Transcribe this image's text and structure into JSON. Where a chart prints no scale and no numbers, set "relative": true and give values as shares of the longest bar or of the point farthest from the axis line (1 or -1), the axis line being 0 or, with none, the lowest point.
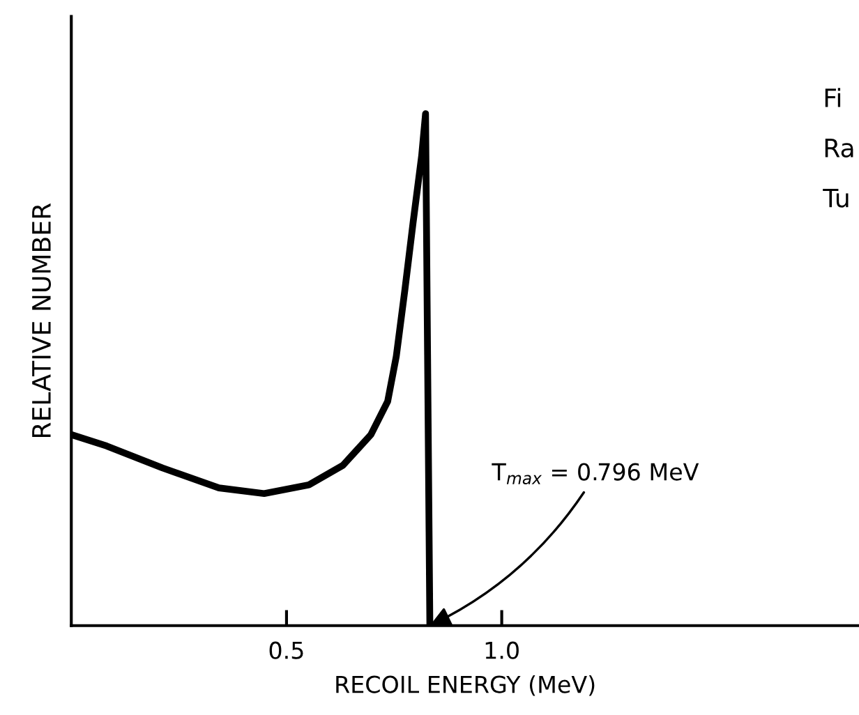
{
  "chart_data": {
    "type": "line",
    "relative": true,
    "xlabel": "RECOIL ENERGY (MeV)",
    "ylabel": "RELATIVE NUMBER",
    "xlim": [
      0,
      1.83
    ],
    "xticks": [
      0.5,
      {
        "value": 1.0,
        "label": "1.0"
      }
    ],
    "series": [
      {
        "color": "#000000",
        "x": [
          0,
          0.082,
          0.212,
          0.343,
          0.448,
          0.552,
          0.631,
          0.696,
          0.735,
          0.755,
          0.775,
          0.794,
          0.814,
          0.823,
          0.833
        ],
        "values": [
          0.373,
          0.351,
          0.308,
          0.269,
          0.258,
          0.275,
          0.313,
          0.373,
          0.438,
          0.526,
          0.656,
          0.787,
          0.918,
          1.0,
          0
        ]
      }
    ],
    "marker": "none",
    "line_style": "solid",
    "grid": false,
    "legend": false,
    "annotations": [
      {
        "text": "T$_{max}$ = 0.796 MeV",
        "x": 0.833,
        "y": 0
      },
      "Fi",
      "Ra",
      "Tu"
    ]
  }
}
